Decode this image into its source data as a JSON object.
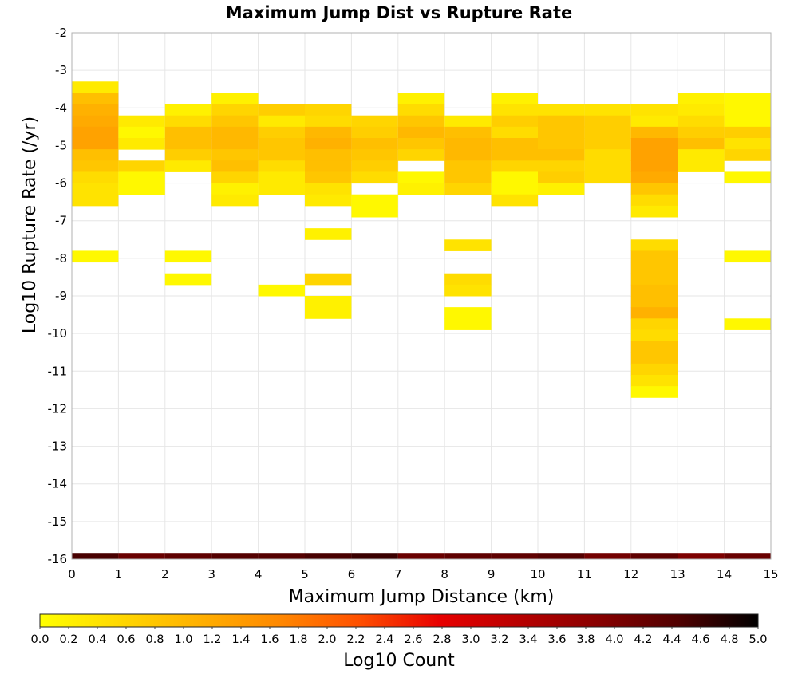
{
  "chart_data": {
    "type": "heatmap",
    "title": "Maximum Jump Dist vs Rupture Rate",
    "xlabel": "Maximum Jump Distance (km)",
    "ylabel": "Log10 Rupture Rate (/yr)",
    "xlim": [
      0,
      15
    ],
    "ylim": [
      -16,
      -2
    ],
    "x_ticks": [
      "0",
      "1",
      "2",
      "3",
      "4",
      "5",
      "6",
      "7",
      "8",
      "9",
      "10",
      "11",
      "12",
      "13",
      "14",
      "15"
    ],
    "y_ticks": [
      "-2",
      "-3",
      "-4",
      "-5",
      "-6",
      "-7",
      "-8",
      "-9",
      "-10",
      "-11",
      "-12",
      "-13",
      "-14",
      "-15",
      "-16"
    ],
    "x_bin_width": 1,
    "y_bin_height": 0.3,
    "grid": true,
    "colorbar": {
      "label": "Log10 Count",
      "min": 0.0,
      "max": 5.0,
      "ticks": [
        "0.0",
        "0.2",
        "0.4",
        "0.6",
        "0.8",
        "1.0",
        "1.2",
        "1.4",
        "1.6",
        "1.8",
        "2.0",
        "2.2",
        "2.4",
        "2.6",
        "2.8",
        "3.0",
        "3.2",
        "3.4",
        "3.6",
        "3.8",
        "4.0",
        "4.2",
        "4.4",
        "4.6",
        "4.8",
        "5.0"
      ],
      "colormap": [
        "#ffff00",
        "#ffd800",
        "#ffb000",
        "#ff8800",
        "#ff5000",
        "#e80000",
        "#b80000",
        "#880000",
        "#500000",
        "#000000"
      ]
    },
    "columns": [
      {
        "x": 0,
        "cells": [
          [
            -3.6,
            0.3
          ],
          [
            -3.9,
            0.9
          ],
          [
            -4.2,
            1.1
          ],
          [
            -4.5,
            1.2
          ],
          [
            -4.8,
            1.3
          ],
          [
            -5.1,
            1.3
          ],
          [
            -5.4,
            0.9
          ],
          [
            -5.7,
            0.8
          ],
          [
            -6.0,
            0.5
          ],
          [
            -6.3,
            0.4
          ],
          [
            -6.6,
            0.4
          ],
          [
            -8.1,
            0.1
          ]
        ]
      },
      {
        "x": 1,
        "cells": [
          [
            -4.5,
            0.3
          ],
          [
            -4.8,
            0.1
          ],
          [
            -5.1,
            0.3
          ],
          [
            -5.7,
            0.6
          ],
          [
            -6.0,
            0.1
          ],
          [
            -6.3,
            0.1
          ]
        ]
      },
      {
        "x": 2,
        "cells": [
          [
            -4.2,
            0.2
          ],
          [
            -4.5,
            0.5
          ],
          [
            -4.8,
            0.9
          ],
          [
            -5.1,
            0.9
          ],
          [
            -5.4,
            0.7
          ],
          [
            -5.7,
            0.3
          ],
          [
            -8.1,
            0.1
          ],
          [
            -8.7,
            0.1
          ]
        ]
      },
      {
        "x": 3,
        "cells": [
          [
            -3.9,
            0.2
          ],
          [
            -4.2,
            0.6
          ],
          [
            -4.5,
            0.8
          ],
          [
            -4.8,
            1.0
          ],
          [
            -5.1,
            1.0
          ],
          [
            -5.4,
            0.8
          ],
          [
            -5.7,
            0.9
          ],
          [
            -6.0,
            0.6
          ],
          [
            -6.3,
            0.2
          ],
          [
            -6.6,
            0.3
          ]
        ]
      },
      {
        "x": 4,
        "cells": [
          [
            -4.2,
            0.7
          ],
          [
            -4.5,
            0.3
          ],
          [
            -4.8,
            0.7
          ],
          [
            -5.1,
            0.8
          ],
          [
            -5.4,
            0.8
          ],
          [
            -5.7,
            0.5
          ],
          [
            -6.0,
            0.3
          ],
          [
            -6.3,
            0.3
          ],
          [
            -9.0,
            0.1
          ]
        ]
      },
      {
        "x": 5,
        "cells": [
          [
            -4.2,
            0.6
          ],
          [
            -4.5,
            0.5
          ],
          [
            -4.8,
            1.0
          ],
          [
            -5.1,
            1.1
          ],
          [
            -5.4,
            0.9
          ],
          [
            -5.7,
            0.9
          ],
          [
            -6.0,
            0.8
          ],
          [
            -6.3,
            0.4
          ],
          [
            -6.6,
            0.3
          ],
          [
            -7.5,
            0.2
          ],
          [
            -8.7,
            0.6
          ],
          [
            -9.3,
            0.2
          ],
          [
            -9.6,
            0.2
          ]
        ]
      },
      {
        "x": 6,
        "cells": [
          [
            -4.5,
            0.6
          ],
          [
            -4.8,
            0.7
          ],
          [
            -5.1,
            0.9
          ],
          [
            -5.4,
            0.8
          ],
          [
            -5.7,
            0.7
          ],
          [
            -6.0,
            0.5
          ],
          [
            -6.6,
            0.1
          ],
          [
            -6.9,
            0.1
          ]
        ]
      },
      {
        "x": 7,
        "cells": [
          [
            -3.9,
            0.2
          ],
          [
            -4.2,
            0.5
          ],
          [
            -4.5,
            0.8
          ],
          [
            -4.8,
            1.0
          ],
          [
            -5.1,
            0.8
          ],
          [
            -5.4,
            0.6
          ],
          [
            -6.0,
            0.1
          ],
          [
            -6.3,
            0.2
          ]
        ]
      },
      {
        "x": 8,
        "cells": [
          [
            -4.5,
            0.3
          ],
          [
            -4.8,
            0.9
          ],
          [
            -5.1,
            1.0
          ],
          [
            -5.4,
            1.0
          ],
          [
            -5.7,
            0.8
          ],
          [
            -6.0,
            0.8
          ],
          [
            -6.3,
            0.6
          ],
          [
            -7.8,
            0.4
          ],
          [
            -8.7,
            0.5
          ],
          [
            -9.0,
            0.4
          ],
          [
            -9.6,
            0.1
          ],
          [
            -9.9,
            0.1
          ]
        ]
      },
      {
        "x": 9,
        "cells": [
          [
            -3.9,
            0.2
          ],
          [
            -4.2,
            0.4
          ],
          [
            -4.5,
            0.7
          ],
          [
            -4.8,
            0.5
          ],
          [
            -5.1,
            0.9
          ],
          [
            -5.4,
            0.9
          ],
          [
            -5.7,
            0.6
          ],
          [
            -6.0,
            0.1
          ],
          [
            -6.3,
            0.1
          ],
          [
            -6.6,
            0.4
          ]
        ]
      },
      {
        "x": 10,
        "cells": [
          [
            -4.2,
            0.4
          ],
          [
            -4.5,
            0.8
          ],
          [
            -4.8,
            0.8
          ],
          [
            -5.1,
            0.8
          ],
          [
            -5.4,
            0.9
          ],
          [
            -5.7,
            0.6
          ],
          [
            -6.0,
            0.7
          ],
          [
            -6.3,
            0.2
          ]
        ]
      },
      {
        "x": 11,
        "cells": [
          [
            -4.2,
            0.4
          ],
          [
            -4.5,
            0.7
          ],
          [
            -4.8,
            0.7
          ],
          [
            -5.1,
            0.7
          ],
          [
            -5.4,
            0.5
          ],
          [
            -5.7,
            0.5
          ],
          [
            -6.0,
            0.5
          ]
        ]
      },
      {
        "x": 12,
        "cells": [
          [
            -4.2,
            0.4
          ],
          [
            -4.5,
            0.3
          ],
          [
            -4.8,
            1.0
          ],
          [
            -5.1,
            1.3
          ],
          [
            -5.4,
            1.3
          ],
          [
            -5.7,
            1.3
          ],
          [
            -6.0,
            1.2
          ],
          [
            -6.3,
            0.8
          ],
          [
            -6.6,
            0.5
          ],
          [
            -6.9,
            0.3
          ],
          [
            -7.8,
            0.5
          ],
          [
            -8.1,
            0.8
          ],
          [
            -8.4,
            0.8
          ],
          [
            -8.7,
            0.8
          ],
          [
            -9.0,
            0.9
          ],
          [
            -9.3,
            0.9
          ],
          [
            -9.6,
            1.1
          ],
          [
            -9.9,
            0.6
          ],
          [
            -10.2,
            0.5
          ],
          [
            -10.5,
            0.8
          ],
          [
            -10.8,
            0.8
          ],
          [
            -11.1,
            0.6
          ],
          [
            -11.4,
            0.4
          ],
          [
            -11.7,
            0.1
          ]
        ]
      },
      {
        "x": 13,
        "cells": [
          [
            -3.9,
            0.2
          ],
          [
            -4.2,
            0.3
          ],
          [
            -4.5,
            0.5
          ],
          [
            -4.8,
            0.7
          ],
          [
            -5.1,
            0.9
          ],
          [
            -5.4,
            0.3
          ],
          [
            -5.7,
            0.3
          ]
        ]
      },
      {
        "x": 14,
        "cells": [
          [
            -3.9,
            0.1
          ],
          [
            -4.2,
            0.1
          ],
          [
            -4.5,
            0.1
          ],
          [
            -4.8,
            0.7
          ],
          [
            -5.1,
            0.4
          ],
          [
            -5.4,
            0.6
          ],
          [
            -6.0,
            0.1
          ],
          [
            -8.1,
            0.1
          ],
          [
            -9.9,
            0.1
          ]
        ]
      }
    ],
    "bottom_row": {
      "y": -16,
      "values": [
        4.5,
        4.2,
        4.3,
        4.4,
        4.4,
        4.5,
        4.6,
        4.2,
        4.3,
        4.3,
        4.4,
        4.1,
        4.3,
        4.0,
        4.2
      ]
    }
  }
}
